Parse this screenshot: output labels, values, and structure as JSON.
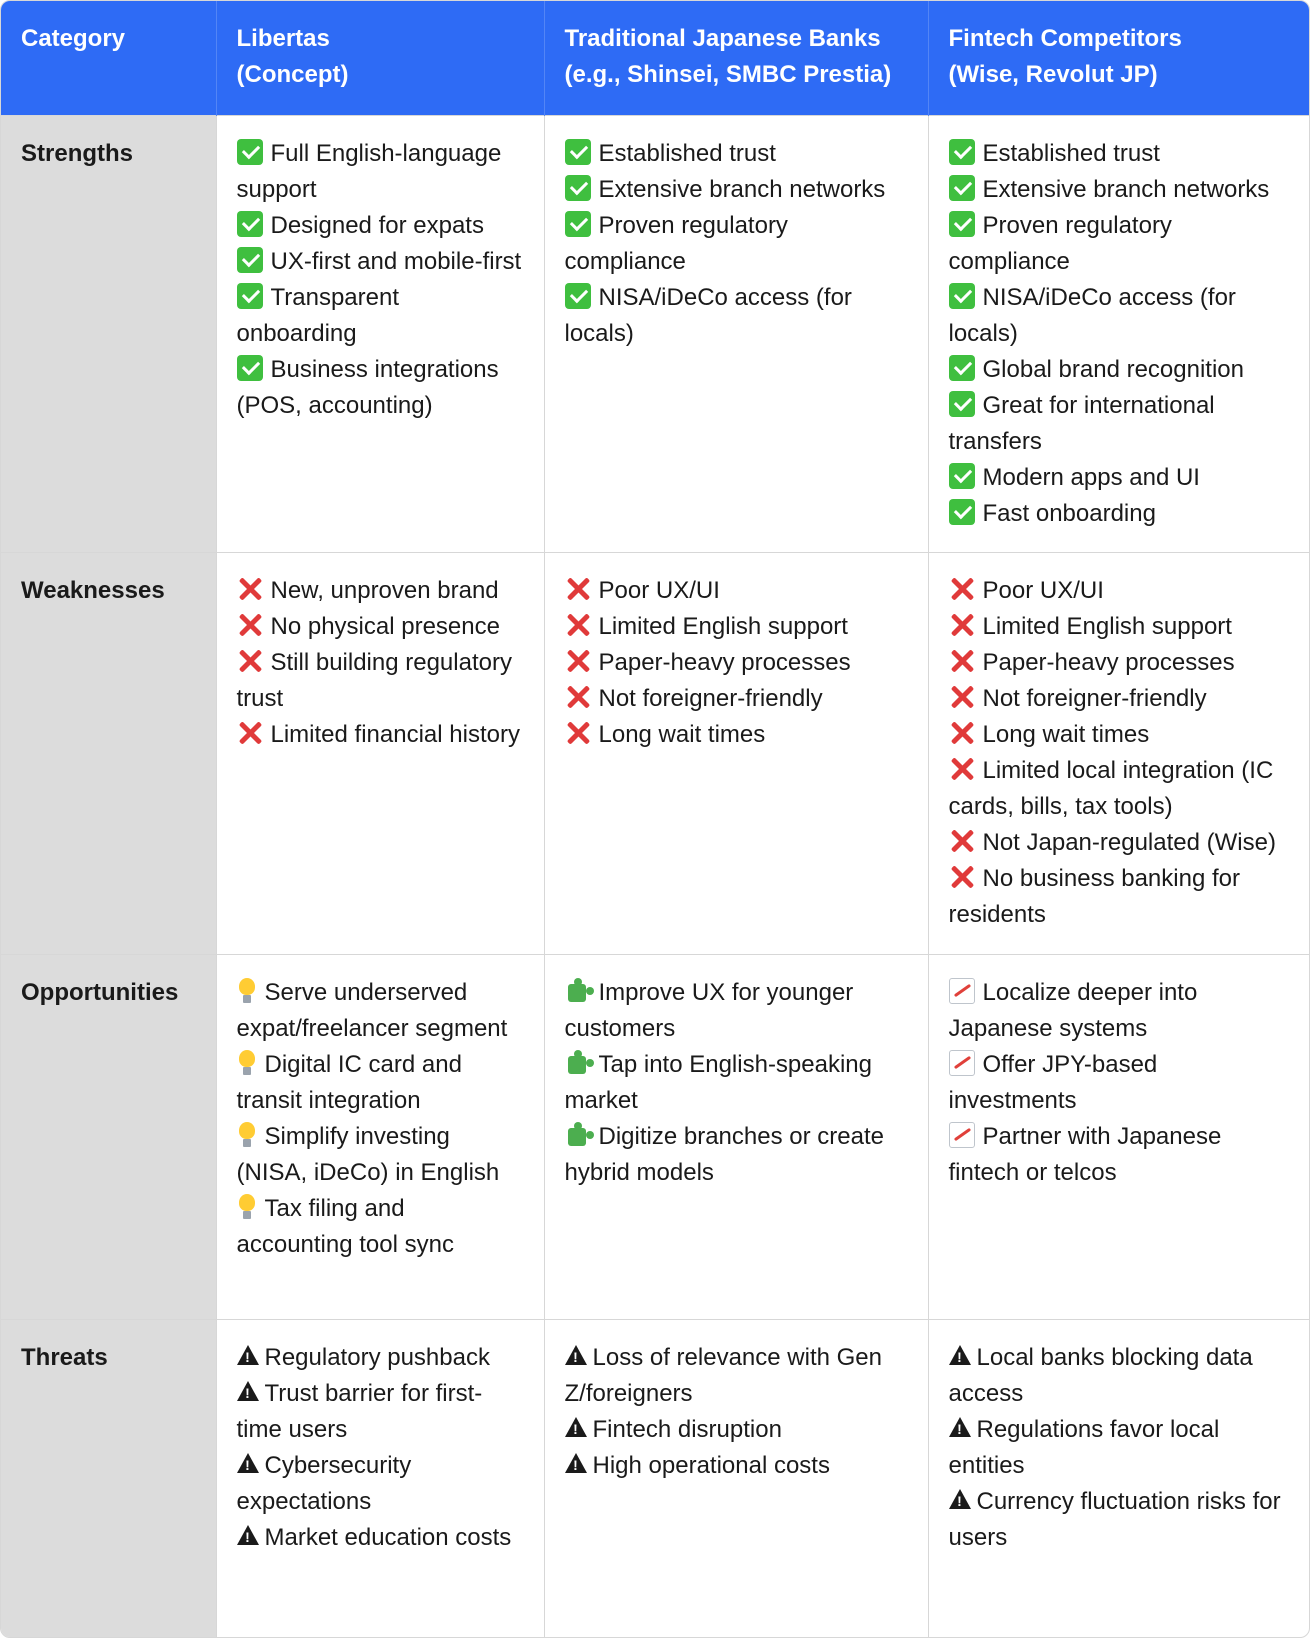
{
  "colors": {
    "header_bg": "#2e6bf5",
    "category_bg": "#dcdcdc",
    "check": "#3fbf3f",
    "cross": "#e03a3a"
  },
  "header": {
    "category": "Category",
    "libertas_line1": "Libertas",
    "libertas_line2": "(Concept)",
    "traditional_line1": "Traditional Japanese Banks",
    "traditional_line2": "(e.g., Shinsei, SMBC Prestia)",
    "fintech_line1": "Fintech Competitors",
    "fintech_line2": "(Wise, Revolut JP)"
  },
  "rows": [
    {
      "category": "Strengths",
      "icon": "check-icon",
      "libertas": [
        "Full English-language support",
        "Designed for expats",
        "UX-first and mobile-first",
        "Transparent onboarding",
        "Business integrations (POS, accounting)"
      ],
      "traditional": [
        "Established trust",
        "Extensive branch networks",
        "Proven regulatory compliance",
        "NISA/iDeCo access (for locals)"
      ],
      "fintech": [
        "Established trust",
        "Extensive branch networks",
        "Proven regulatory compliance",
        "NISA/iDeCo access (for locals)",
        "Global brand recognition",
        "Great for international transfers",
        "Modern apps and UI",
        "Fast onboarding"
      ]
    },
    {
      "category": "Weaknesses",
      "icon": "cross-icon",
      "libertas": [
        "New, unproven brand",
        "No physical presence",
        "Still building regulatory trust",
        "Limited financial history"
      ],
      "traditional": [
        "Poor UX/UI",
        "Limited English support",
        "Paper-heavy processes",
        "Not foreigner-friendly",
        "Long wait times"
      ],
      "fintech": [
        "Poor UX/UI",
        "Limited English support",
        "Paper-heavy processes",
        "Not foreigner-friendly",
        "Long wait times",
        "Limited local integration (IC cards, bills, tax tools)",
        "Not Japan-regulated (Wise)",
        "No business banking for residents"
      ]
    },
    {
      "category": "Opportunities",
      "icon": "mixed",
      "libertas": [
        "Serve underserved expat/freelancer segment",
        "Digital IC card and transit integration",
        "Simplify investing (NISA, iDeCo) in English",
        "Tax filing and accounting tool sync"
      ],
      "traditional": [
        "Improve UX for younger customers",
        "Tap into English-speaking market",
        "Digitize branches or create hybrid models"
      ],
      "fintech": [
        "Localize deeper into Japanese systems",
        "Offer JPY-based investments",
        "Partner with Japanese fintech or telcos"
      ]
    },
    {
      "category": "Threats",
      "icon": "warning-icon",
      "libertas": [
        "Regulatory pushback",
        "Trust barrier for first-time users",
        "Cybersecurity expectations",
        "Market education costs"
      ],
      "traditional": [
        "Loss of relevance with Gen Z/foreigners",
        "Fintech disruption",
        "High operational costs"
      ],
      "fintech": [
        "Local banks blocking data access",
        "Regulations favor local entities",
        "Currency fluctuation risks for users"
      ]
    }
  ]
}
